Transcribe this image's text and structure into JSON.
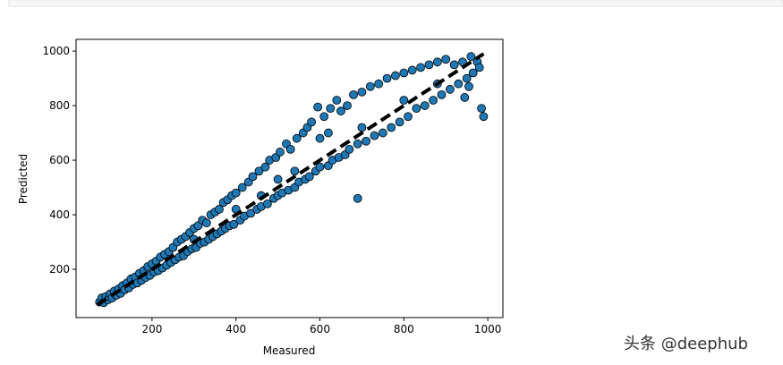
{
  "chart_data": {
    "type": "scatter",
    "x_label": "Measured",
    "y_label": "Predicted",
    "xlim": [
      19,
      1036
    ],
    "ylim": [
      23,
      1043
    ],
    "xticks": [
      200,
      400,
      600,
      800,
      1000
    ],
    "yticks": [
      200,
      400,
      600,
      800,
      1000
    ],
    "color": "#1f77b4",
    "edge_color": "#000000",
    "reference_line": {
      "x": [
        70,
        990
      ],
      "y": [
        70,
        990
      ],
      "color": "#000000",
      "style": "dashed"
    },
    "x": [
      75,
      80,
      85,
      90,
      95,
      100,
      105,
      110,
      115,
      120,
      125,
      130,
      135,
      140,
      145,
      150,
      155,
      160,
      165,
      170,
      175,
      180,
      185,
      190,
      195,
      200,
      205,
      210,
      215,
      220,
      225,
      230,
      235,
      240,
      245,
      250,
      255,
      260,
      265,
      270,
      275,
      280,
      285,
      290,
      295,
      300,
      305,
      310,
      315,
      320,
      325,
      330,
      335,
      340,
      345,
      350,
      355,
      360,
      365,
      370,
      375,
      380,
      385,
      390,
      395,
      400,
      410,
      415,
      420,
      430,
      435,
      440,
      450,
      455,
      460,
      470,
      475,
      480,
      490,
      495,
      500,
      505,
      510,
      520,
      525,
      530,
      540,
      545,
      550,
      560,
      565,
      570,
      575,
      580,
      590,
      595,
      600,
      610,
      620,
      625,
      630,
      640,
      645,
      650,
      660,
      665,
      670,
      680,
      690,
      690,
      700,
      710,
      720,
      730,
      740,
      750,
      760,
      770,
      780,
      790,
      800,
      810,
      820,
      830,
      840,
      850,
      860,
      870,
      880,
      890,
      900,
      910,
      920,
      930,
      940,
      950,
      960,
      965,
      975,
      980,
      985,
      990,
      955,
      945,
      600,
      620,
      540,
      460,
      400,
      300,
      500,
      700,
      800,
      880
    ],
    "y": [
      80,
      95,
      78,
      100,
      88,
      110,
      95,
      120,
      105,
      128,
      112,
      140,
      125,
      150,
      132,
      165,
      145,
      172,
      150,
      185,
      160,
      195,
      170,
      210,
      178,
      220,
      190,
      230,
      195,
      245,
      205,
      255,
      215,
      265,
      225,
      280,
      235,
      300,
      245,
      310,
      250,
      320,
      265,
      335,
      275,
      350,
      280,
      360,
      295,
      380,
      300,
      370,
      310,
      400,
      320,
      410,
      330,
      420,
      340,
      445,
      350,
      455,
      360,
      470,
      365,
      480,
      380,
      500,
      395,
      520,
      405,
      540,
      420,
      560,
      430,
      575,
      440,
      600,
      460,
      610,
      470,
      630,
      480,
      660,
      490,
      640,
      500,
      680,
      520,
      700,
      530,
      720,
      540,
      740,
      560,
      795,
      575,
      760,
      580,
      790,
      600,
      820,
      610,
      780,
      620,
      800,
      640,
      840,
      460,
      660,
      850,
      670,
      870,
      690,
      880,
      700,
      900,
      720,
      910,
      740,
      920,
      760,
      930,
      790,
      940,
      800,
      950,
      820,
      960,
      840,
      970,
      860,
      950,
      880,
      960,
      900,
      980,
      920,
      960,
      940,
      790,
      760,
      870,
      830,
      680,
      700,
      560,
      470,
      420,
      310,
      530,
      720,
      820,
      880
    ]
  }
}
